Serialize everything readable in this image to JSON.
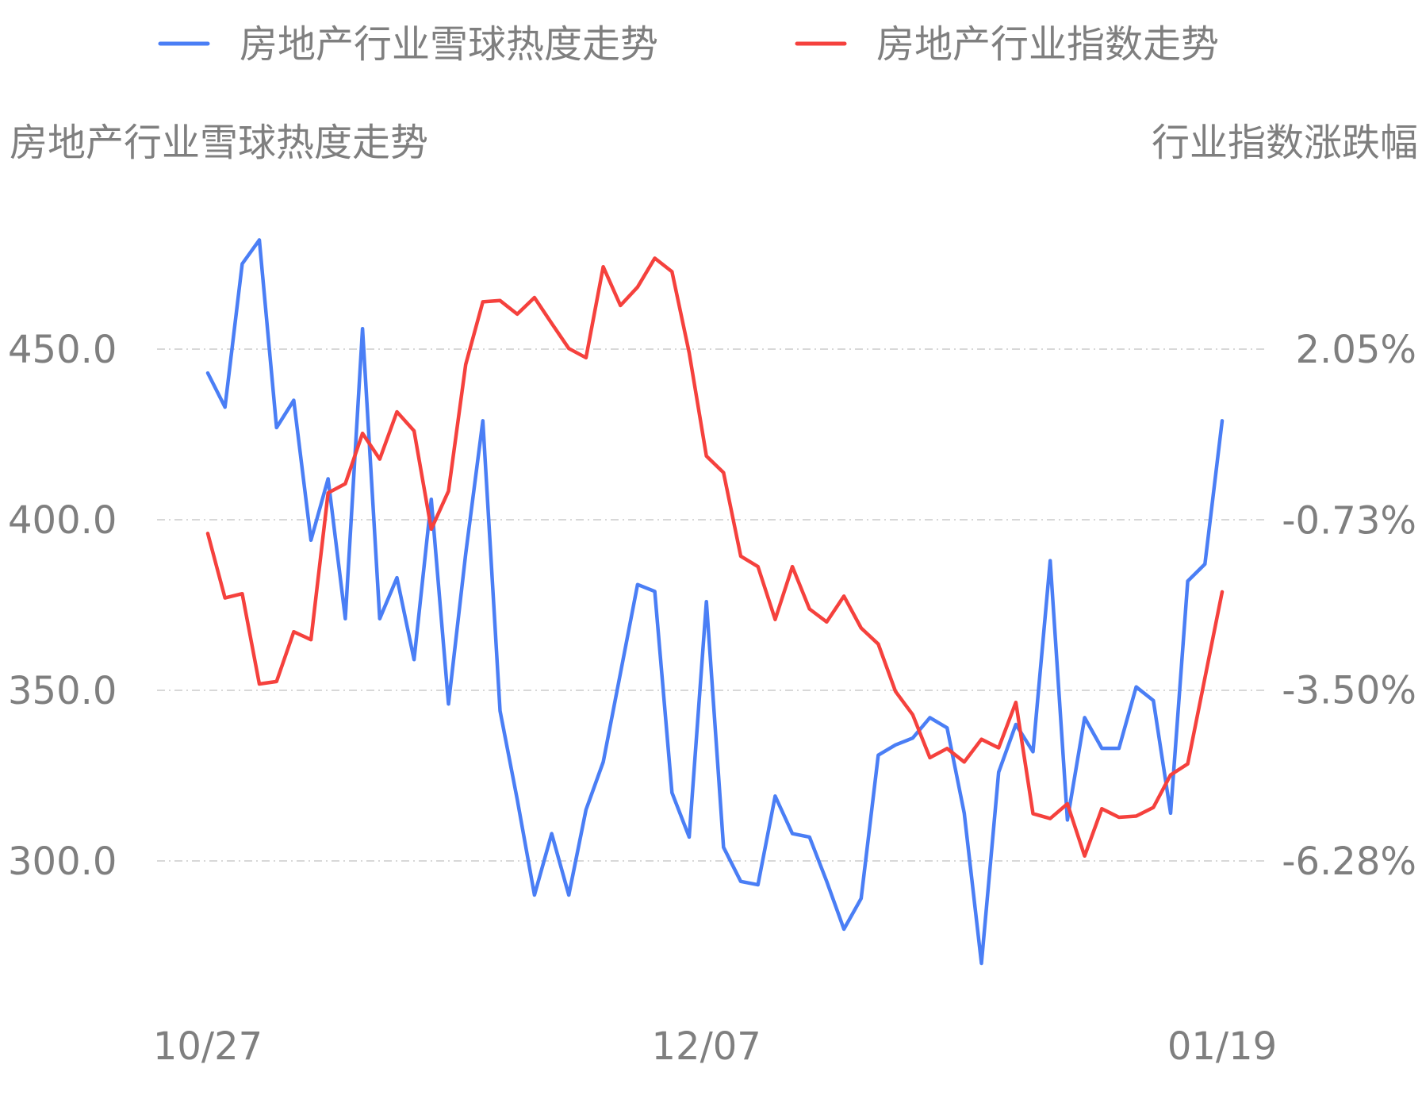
{
  "chart_data": {
    "type": "line",
    "legend": {
      "placement": "top-center",
      "items": [
        {
          "name": "房地产行业雪球热度走势",
          "color": "#4a7ef5"
        },
        {
          "name": "房地产行业指数走势",
          "color": "#f5413d"
        }
      ]
    },
    "left_axis": {
      "title": "房地产行业雪球热度走势",
      "ticks": [
        "450.0",
        "400.0",
        "350.0",
        "300.0"
      ],
      "tick_values": [
        450,
        400,
        350,
        300
      ],
      "range": [
        272,
        488
      ]
    },
    "right_axis": {
      "title": "行业指数涨跌幅",
      "ticks": [
        "2.05%",
        "-0.73%",
        "-3.50%",
        "-6.28%"
      ],
      "tick_values": [
        2.05,
        -0.73,
        -3.5,
        -6.28
      ],
      "range": [
        -7.95,
        2.6
      ]
    },
    "x_axis": {
      "ticks": [
        "10/27",
        "12/07",
        "01/19"
      ],
      "tick_indices": [
        0,
        29,
        59
      ]
    },
    "grid": "horizontal-dashed",
    "series": [
      {
        "name": "房地产行业雪球热度走势",
        "axis": "left",
        "color": "#4a7ef5",
        "values": [
          443,
          433,
          475,
          482,
          427,
          435,
          394,
          412,
          371,
          456,
          371,
          383,
          359,
          406,
          346,
          390,
          429,
          344,
          318,
          290,
          308,
          290,
          315,
          329,
          355,
          381,
          379,
          320,
          307,
          376,
          304,
          294,
          293,
          319,
          308,
          307,
          294,
          280,
          289,
          331,
          334,
          336,
          342,
          339,
          314,
          270,
          326,
          340,
          332,
          388,
          312,
          342,
          333,
          333,
          351,
          347,
          314,
          382,
          387,
          429
        ]
      },
      {
        "name": "房地产行业指数走势",
        "axis": "right",
        "color": "#f5413d",
        "values": [
          -0.95,
          -2.0,
          -1.93,
          -3.4,
          -3.36,
          -2.55,
          -2.68,
          -0.29,
          -0.14,
          0.68,
          0.26,
          1.03,
          0.72,
          -0.88,
          -0.26,
          1.8,
          2.82,
          2.84,
          2.62,
          2.89,
          2.47,
          2.06,
          1.91,
          3.39,
          2.76,
          3.06,
          3.53,
          3.31,
          1.99,
          0.31,
          0.04,
          -1.32,
          -1.49,
          -2.35,
          -1.49,
          -2.18,
          -2.39,
          -1.97,
          -2.49,
          -2.75,
          -3.52,
          -3.9,
          -4.6,
          -4.45,
          -4.67,
          -4.3,
          -4.44,
          -3.7,
          -5.51,
          -5.59,
          -5.35,
          -6.2,
          -5.43,
          -5.57,
          -5.55,
          -5.41,
          -4.88,
          -4.7,
          -3.3,
          -1.9
        ]
      }
    ]
  }
}
